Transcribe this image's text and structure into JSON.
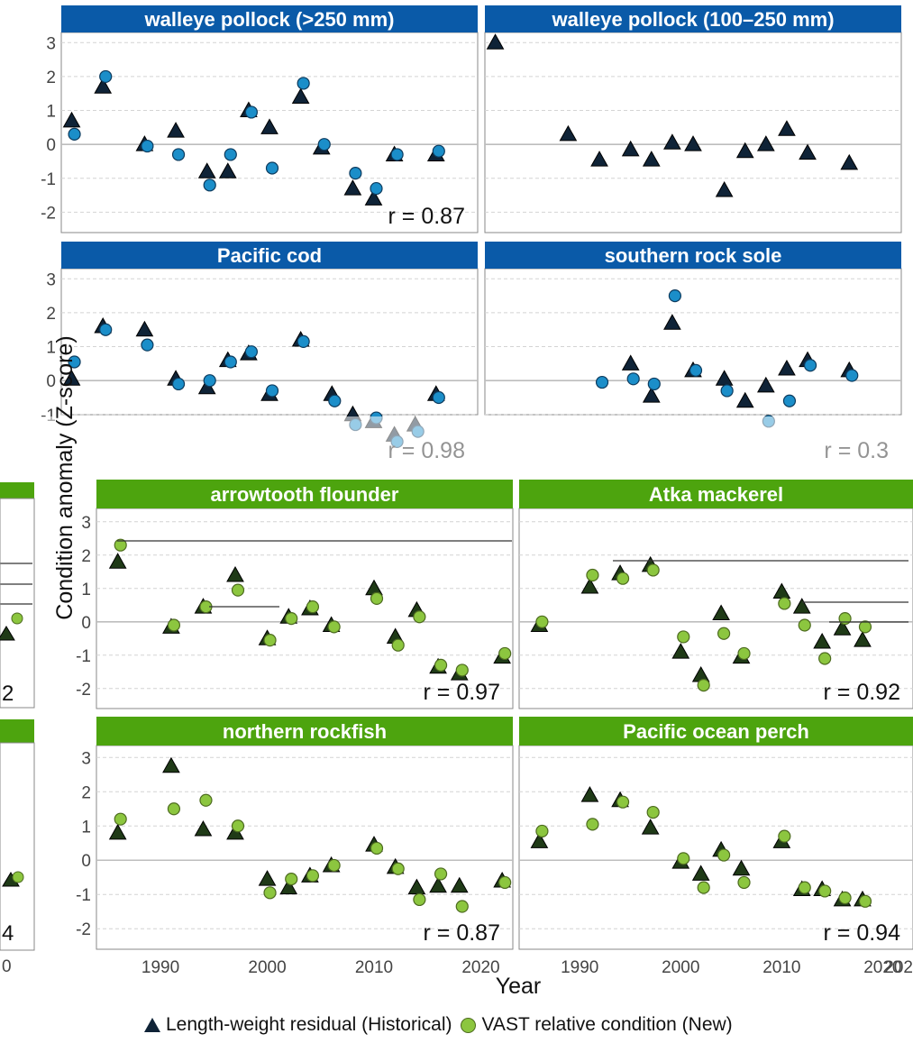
{
  "legend": {
    "historical": "Length-weight residual (Historical)",
    "new": "VAST relative condition (New)"
  },
  "axis_titles": {
    "y": "Condition anomaly (Z-score)",
    "x": "Year"
  },
  "colors": {
    "strip_blue": "#0a5aa8",
    "strip_green": "#4da40e",
    "triangle": "#0f2337",
    "circle_blue": "#1b8ec9",
    "circle_green": "#8cc63f"
  },
  "chart_data": [
    {
      "type": "scatter",
      "title": "walleye pollock (>250 mm)",
      "r_label": "r = 0.87",
      "xlim": [
        1983,
        2023
      ],
      "ylim": [
        -2.5,
        3.2
      ],
      "yticks": [
        "3",
        "2",
        "1",
        "0",
        "-1",
        "-2"
      ],
      "series": [
        {
          "name": "Length-weight residual (Historical)",
          "x": [
            1984,
            1987,
            1991,
            1994,
            1997,
            1999,
            2001,
            2003,
            2006,
            2008,
            2011,
            2013,
            2015,
            2019
          ],
          "y": [
            0.7,
            1.7,
            0.0,
            0.4,
            -0.8,
            -0.8,
            1.0,
            0.5,
            1.4,
            -0.1,
            -1.3,
            -1.6,
            -0.3,
            -0.3
          ]
        },
        {
          "name": "VAST relative condition (New)",
          "x": [
            1984,
            1987,
            1991,
            1994,
            1997,
            1999,
            2001,
            2003,
            2006,
            2008,
            2011,
            2013,
            2015,
            2019
          ],
          "y": [
            0.3,
            2.0,
            -0.05,
            -0.3,
            -1.2,
            -0.3,
            0.95,
            -0.7,
            1.8,
            0.0,
            -0.85,
            -1.3,
            -0.3,
            -0.2
          ]
        }
      ]
    },
    {
      "type": "scatter",
      "title": "walleye pollock (100–250 mm)",
      "r_label": "",
      "xlim": [
        1983,
        2023
      ],
      "ylim": [
        -2.5,
        3.2
      ],
      "series": [
        {
          "name": "Length-weight residual (Historical)",
          "x": [
            1984,
            1991,
            1994,
            1997,
            1999,
            2001,
            2003,
            2006,
            2008,
            2010,
            2012,
            2014,
            2018
          ],
          "y": [
            3.0,
            0.3,
            -0.45,
            -0.15,
            -0.45,
            0.05,
            0.0,
            -1.35,
            -0.2,
            0.0,
            0.45,
            -0.25,
            -0.55
          ]
        }
      ]
    },
    {
      "type": "scatter",
      "title": "Pacific cod",
      "r_label": "r = 0.98",
      "xlim": [
        1983,
        2023
      ],
      "ylim": [
        -2.5,
        3.2
      ],
      "yticks": [
        "3",
        "2",
        "1",
        "0",
        "-1"
      ],
      "series": [
        {
          "name": "Length-weight residual (Historical)",
          "x": [
            1984,
            1987,
            1991,
            1994,
            1997,
            1999,
            2001,
            2003,
            2006,
            2009,
            2011,
            2013,
            2015,
            2017,
            2019
          ],
          "y": [
            0.05,
            1.6,
            1.5,
            0.05,
            -0.2,
            0.6,
            0.8,
            -0.4,
            1.2,
            -0.4,
            -1.0,
            -1.2,
            -1.6,
            -1.3,
            -0.4
          ]
        },
        {
          "name": "VAST relative condition (New)",
          "x": [
            1984,
            1987,
            1991,
            1994,
            1997,
            1999,
            2001,
            2003,
            2006,
            2009,
            2011,
            2013,
            2015,
            2017,
            2019
          ],
          "y": [
            0.55,
            1.5,
            1.05,
            -0.1,
            0.0,
            0.55,
            0.85,
            -0.3,
            1.15,
            -0.6,
            -1.3,
            -1.1,
            -1.8,
            -1.5,
            -0.5
          ]
        }
      ]
    },
    {
      "type": "scatter",
      "title": "southern rock sole",
      "r_label": "r = 0.3",
      "xlim": [
        1983,
        2023
      ],
      "ylim": [
        -2.5,
        3.2
      ],
      "series": [
        {
          "name": "Length-weight residual (Historical)",
          "x": [
            1997,
            1999,
            2001,
            2003,
            2006,
            2008,
            2010,
            2012,
            2014,
            2018
          ],
          "y": [
            0.5,
            -0.45,
            1.7,
            0.3,
            0.05,
            -0.6,
            -0.15,
            0.35,
            0.6,
            0.3
          ]
        },
        {
          "name": "VAST relative condition (New)",
          "x": [
            1994,
            1997,
            1999,
            2001,
            2003,
            2006,
            2010,
            2012,
            2014,
            2018
          ],
          "y": [
            -0.05,
            0.05,
            -0.1,
            2.5,
            0.3,
            -0.3,
            -1.2,
            -0.6,
            0.45,
            0.15
          ]
        }
      ]
    },
    {
      "type": "scatter",
      "title": "arrowtooth flounder",
      "r_label": "r = 0.97",
      "xlim": [
        1984,
        2023
      ],
      "ylim": [
        -2.6,
        3.2
      ],
      "yticks": [
        "3",
        "2",
        "1",
        "0",
        "-1",
        "-2"
      ],
      "series": [
        {
          "name": "Length-weight residual (Historical)",
          "x": [
            1986,
            1991,
            1994,
            1997,
            2000,
            2002,
            2004,
            2006,
            2010,
            2012,
            2014,
            2016,
            2018,
            2022
          ],
          "y": [
            1.8,
            -0.15,
            0.45,
            1.4,
            -0.5,
            0.15,
            0.4,
            -0.1,
            1.0,
            -0.45,
            0.35,
            -1.35,
            -1.55,
            -1.05
          ]
        },
        {
          "name": "VAST relative condition (New)",
          "x": [
            1986,
            1991,
            1994,
            1997,
            2000,
            2002,
            2004,
            2006,
            2010,
            2012,
            2014,
            2016,
            2018,
            2022
          ],
          "y": [
            2.3,
            -0.1,
            0.45,
            0.95,
            -0.55,
            0.1,
            0.45,
            -0.15,
            0.7,
            -0.7,
            0.15,
            -1.3,
            -1.45,
            -0.95
          ]
        }
      ]
    },
    {
      "type": "scatter",
      "title": "Atka mackerel",
      "r_label": "r = 0.92",
      "xlim": [
        1984,
        2023
      ],
      "ylim": [
        -2.6,
        3.2
      ],
      "series": [
        {
          "name": "Length-weight residual (Historical)",
          "x": [
            1986,
            1991,
            1994,
            1997,
            2000,
            2002,
            2004,
            2006,
            2010,
            2012,
            2014,
            2016,
            2018
          ],
          "y": [
            -0.1,
            1.05,
            1.45,
            1.7,
            -0.9,
            -1.6,
            0.25,
            -1.05,
            0.9,
            0.45,
            -0.6,
            -0.2,
            -0.55
          ]
        },
        {
          "name": "VAST relative condition (New)",
          "x": [
            1986,
            1991,
            1994,
            1997,
            2000,
            2002,
            2004,
            2006,
            2010,
            2012,
            2014,
            2016,
            2018
          ],
          "y": [
            0.0,
            1.4,
            1.3,
            1.55,
            -0.45,
            -1.9,
            -0.35,
            -0.95,
            0.55,
            -0.1,
            -1.1,
            0.1,
            -0.15
          ]
        }
      ]
    },
    {
      "type": "scatter",
      "title": "northern rockfish",
      "r_label": "r = 0.87",
      "xlim": [
        1984,
        2023
      ],
      "ylim": [
        -2.6,
        3.2
      ],
      "yticks": [
        "3",
        "2",
        "1",
        "0",
        "-1",
        "-2"
      ],
      "xticks": [
        "1990",
        "2000",
        "2010",
        "2020"
      ],
      "series": [
        {
          "name": "Length-weight residual (Historical)",
          "x": [
            1986,
            1991,
            1994,
            1997,
            2000,
            2002,
            2004,
            2006,
            2010,
            2012,
            2014,
            2016,
            2018,
            2022
          ],
          "y": [
            0.8,
            2.75,
            0.9,
            0.8,
            -0.55,
            -0.8,
            -0.45,
            -0.15,
            0.45,
            -0.2,
            -0.8,
            -0.75,
            -0.75,
            -0.6
          ]
        },
        {
          "name": "VAST relative condition (New)",
          "x": [
            1986,
            1991,
            1994,
            1997,
            2000,
            2002,
            2004,
            2006,
            2010,
            2012,
            2014,
            2016,
            2018,
            2022
          ],
          "y": [
            1.2,
            1.5,
            1.75,
            1.0,
            -0.95,
            -0.55,
            -0.45,
            -0.15,
            0.35,
            -0.25,
            -1.15,
            -0.4,
            -1.35,
            -0.65
          ]
        }
      ]
    },
    {
      "type": "scatter",
      "title": "Pacific ocean perch",
      "r_label": "r = 0.94",
      "xlim": [
        1984,
        2023
      ],
      "ylim": [
        -2.6,
        3.2
      ],
      "xticks": [
        "1990",
        "2000",
        "2010",
        "2020"
      ],
      "series": [
        {
          "name": "Length-weight residual (Historical)",
          "x": [
            1986,
            1991,
            1994,
            1997,
            2000,
            2002,
            2004,
            2006,
            2010,
            2012,
            2014,
            2016,
            2018
          ],
          "y": [
            0.55,
            1.9,
            1.75,
            0.95,
            -0.05,
            -0.4,
            0.3,
            -0.25,
            0.55,
            -0.85,
            -0.85,
            -1.15,
            -1.15
          ]
        },
        {
          "name": "VAST relative condition (New)",
          "x": [
            1986,
            1991,
            1994,
            1997,
            2000,
            2002,
            2004,
            2006,
            2010,
            2012,
            2014,
            2016,
            2018
          ],
          "y": [
            0.85,
            1.05,
            1.7,
            1.4,
            0.05,
            -0.8,
            0.15,
            -0.65,
            0.7,
            -0.8,
            -0.9,
            -1.1,
            -1.2
          ]
        }
      ]
    }
  ],
  "partial_fragments": {
    "left_r_labels": [
      "2",
      "4"
    ],
    "left_x_tick": "0",
    "partial_x_tick": "202"
  }
}
